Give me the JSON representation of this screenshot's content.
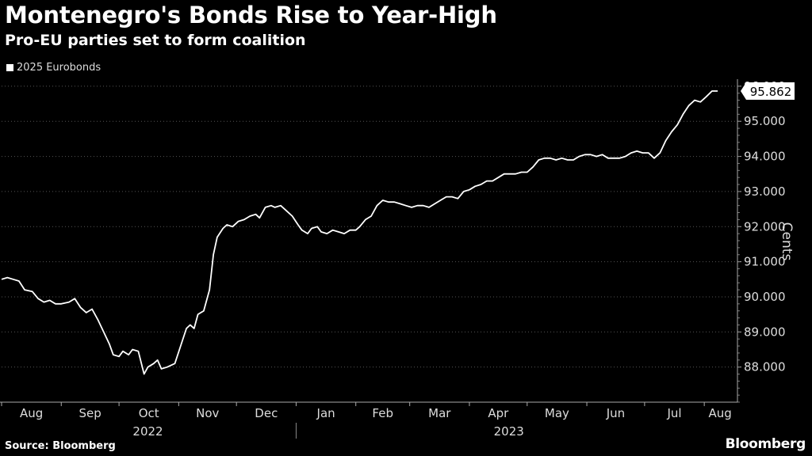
{
  "header": {
    "title": "Montenegro's Bonds Rise to Year-High",
    "subtitle": "Pro-EU parties set to form coalition"
  },
  "legend": {
    "label": "2025 Eurobonds",
    "swatch_color": "#ffffff"
  },
  "footer": {
    "source": "Source: Bloomberg",
    "brand": "Bloomberg"
  },
  "chart_data": {
    "type": "line",
    "ylabel": "Cents",
    "ylim": [
      87.0,
      96.2
    ],
    "yticks": [
      "88.000",
      "89.000",
      "90.000",
      "91.000",
      "92.000",
      "93.000",
      "94.000",
      "95.000",
      "96.000"
    ],
    "ytick_values": [
      88,
      89,
      90,
      91,
      92,
      93,
      94,
      95,
      96
    ],
    "x_range": [
      "2022-08-01",
      "2023-08-10"
    ],
    "month_ticks": [
      {
        "label": "Aug",
        "date": "2022-08-01"
      },
      {
        "label": "Sep",
        "date": "2022-09-01"
      },
      {
        "label": "Oct",
        "date": "2022-10-01"
      },
      {
        "label": "Nov",
        "date": "2022-11-01"
      },
      {
        "label": "Dec",
        "date": "2022-12-01"
      },
      {
        "label": "Jan",
        "date": "2023-01-01"
      },
      {
        "label": "Feb",
        "date": "2023-02-01"
      },
      {
        "label": "Mar",
        "date": "2023-03-01"
      },
      {
        "label": "Apr",
        "date": "2023-04-01"
      },
      {
        "label": "May",
        "date": "2023-05-01"
      },
      {
        "label": "Jun",
        "date": "2023-06-01"
      },
      {
        "label": "Jul",
        "date": "2023-07-01"
      },
      {
        "label": "Aug",
        "date": "2023-08-01"
      }
    ],
    "years": [
      {
        "label": "2022",
        "start": "2022-08-01",
        "end": "2022-12-31"
      },
      {
        "label": "2023",
        "start": "2023-01-01",
        "end": "2023-08-10"
      }
    ],
    "grid": true,
    "last_value_label": "95.862",
    "series": [
      {
        "name": "2025 Eurobonds",
        "color": "#ffffff",
        "points": [
          [
            "2022-08-01",
            90.5
          ],
          [
            "2022-08-04",
            90.55
          ],
          [
            "2022-08-07",
            90.5
          ],
          [
            "2022-08-10",
            90.45
          ],
          [
            "2022-08-13",
            90.2
          ],
          [
            "2022-08-17",
            90.15
          ],
          [
            "2022-08-20",
            89.95
          ],
          [
            "2022-08-23",
            89.85
          ],
          [
            "2022-08-26",
            89.9
          ],
          [
            "2022-08-29",
            89.8
          ],
          [
            "2022-09-01",
            89.8
          ],
          [
            "2022-09-05",
            89.85
          ],
          [
            "2022-09-08",
            89.95
          ],
          [
            "2022-09-11",
            89.7
          ],
          [
            "2022-09-14",
            89.55
          ],
          [
            "2022-09-17",
            89.65
          ],
          [
            "2022-09-20",
            89.35
          ],
          [
            "2022-09-23",
            89.0
          ],
          [
            "2022-09-26",
            88.65
          ],
          [
            "2022-09-28",
            88.35
          ],
          [
            "2022-10-01",
            88.3
          ],
          [
            "2022-10-03",
            88.45
          ],
          [
            "2022-10-06",
            88.35
          ],
          [
            "2022-10-08",
            88.5
          ],
          [
            "2022-10-11",
            88.45
          ],
          [
            "2022-10-14",
            87.8
          ],
          [
            "2022-10-16",
            88.0
          ],
          [
            "2022-10-19",
            88.1
          ],
          [
            "2022-10-21",
            88.2
          ],
          [
            "2022-10-23",
            87.95
          ],
          [
            "2022-10-26",
            88.0
          ],
          [
            "2022-10-30",
            88.1
          ],
          [
            "2022-11-02",
            88.6
          ],
          [
            "2022-11-05",
            89.1
          ],
          [
            "2022-11-07",
            89.2
          ],
          [
            "2022-11-09",
            89.1
          ],
          [
            "2022-11-11",
            89.5
          ],
          [
            "2022-11-14",
            89.6
          ],
          [
            "2022-11-17",
            90.2
          ],
          [
            "2022-11-19",
            91.2
          ],
          [
            "2022-11-21",
            91.7
          ],
          [
            "2022-11-24",
            91.95
          ],
          [
            "2022-11-26",
            92.05
          ],
          [
            "2022-11-29",
            92.0
          ],
          [
            "2022-12-02",
            92.15
          ],
          [
            "2022-12-05",
            92.2
          ],
          [
            "2022-12-08",
            92.3
          ],
          [
            "2022-12-11",
            92.35
          ],
          [
            "2022-12-13",
            92.25
          ],
          [
            "2022-12-16",
            92.55
          ],
          [
            "2022-12-19",
            92.6
          ],
          [
            "2022-12-21",
            92.55
          ],
          [
            "2022-12-24",
            92.6
          ],
          [
            "2022-12-27",
            92.45
          ],
          [
            "2022-12-30",
            92.3
          ],
          [
            "2023-01-02",
            92.05
          ],
          [
            "2023-01-04",
            91.9
          ],
          [
            "2023-01-07",
            91.8
          ],
          [
            "2023-01-09",
            91.95
          ],
          [
            "2023-01-12",
            92.0
          ],
          [
            "2023-01-14",
            91.85
          ],
          [
            "2023-01-17",
            91.8
          ],
          [
            "2023-01-20",
            91.9
          ],
          [
            "2023-01-23",
            91.85
          ],
          [
            "2023-01-26",
            91.8
          ],
          [
            "2023-01-29",
            91.9
          ],
          [
            "2023-02-01",
            91.9
          ],
          [
            "2023-02-03",
            92.0
          ],
          [
            "2023-02-06",
            92.2
          ],
          [
            "2023-02-09",
            92.3
          ],
          [
            "2023-02-12",
            92.6
          ],
          [
            "2023-02-15",
            92.75
          ],
          [
            "2023-02-18",
            92.7
          ],
          [
            "2023-02-21",
            92.7
          ],
          [
            "2023-02-24",
            92.65
          ],
          [
            "2023-02-27",
            92.6
          ],
          [
            "2023-03-02",
            92.55
          ],
          [
            "2023-03-05",
            92.6
          ],
          [
            "2023-03-08",
            92.6
          ],
          [
            "2023-03-11",
            92.55
          ],
          [
            "2023-03-14",
            92.65
          ],
          [
            "2023-03-17",
            92.75
          ],
          [
            "2023-03-20",
            92.85
          ],
          [
            "2023-03-23",
            92.85
          ],
          [
            "2023-03-26",
            92.8
          ],
          [
            "2023-03-29",
            93.0
          ],
          [
            "2023-04-01",
            93.05
          ],
          [
            "2023-04-04",
            93.15
          ],
          [
            "2023-04-07",
            93.2
          ],
          [
            "2023-04-10",
            93.3
          ],
          [
            "2023-04-13",
            93.3
          ],
          [
            "2023-04-16",
            93.4
          ],
          [
            "2023-04-19",
            93.5
          ],
          [
            "2023-04-22",
            93.5
          ],
          [
            "2023-04-25",
            93.5
          ],
          [
            "2023-04-28",
            93.55
          ],
          [
            "2023-05-01",
            93.55
          ],
          [
            "2023-05-04",
            93.7
          ],
          [
            "2023-05-07",
            93.9
          ],
          [
            "2023-05-10",
            93.95
          ],
          [
            "2023-05-13",
            93.95
          ],
          [
            "2023-05-16",
            93.9
          ],
          [
            "2023-05-19",
            93.95
          ],
          [
            "2023-05-22",
            93.9
          ],
          [
            "2023-05-25",
            93.9
          ],
          [
            "2023-05-28",
            94.0
          ],
          [
            "2023-05-31",
            94.05
          ],
          [
            "2023-06-03",
            94.05
          ],
          [
            "2023-06-06",
            94.0
          ],
          [
            "2023-06-09",
            94.05
          ],
          [
            "2023-06-12",
            93.95
          ],
          [
            "2023-06-15",
            93.95
          ],
          [
            "2023-06-18",
            93.95
          ],
          [
            "2023-06-21",
            94.0
          ],
          [
            "2023-06-24",
            94.1
          ],
          [
            "2023-06-27",
            94.15
          ],
          [
            "2023-06-30",
            94.1
          ],
          [
            "2023-07-03",
            94.1
          ],
          [
            "2023-07-06",
            93.95
          ],
          [
            "2023-07-09",
            94.1
          ],
          [
            "2023-07-12",
            94.45
          ],
          [
            "2023-07-15",
            94.7
          ],
          [
            "2023-07-18",
            94.9
          ],
          [
            "2023-07-21",
            95.2
          ],
          [
            "2023-07-24",
            95.45
          ],
          [
            "2023-07-27",
            95.6
          ],
          [
            "2023-07-30",
            95.55
          ],
          [
            "2023-08-02",
            95.7
          ],
          [
            "2023-08-05",
            95.862
          ],
          [
            "2023-08-08",
            95.862
          ]
        ]
      }
    ]
  }
}
